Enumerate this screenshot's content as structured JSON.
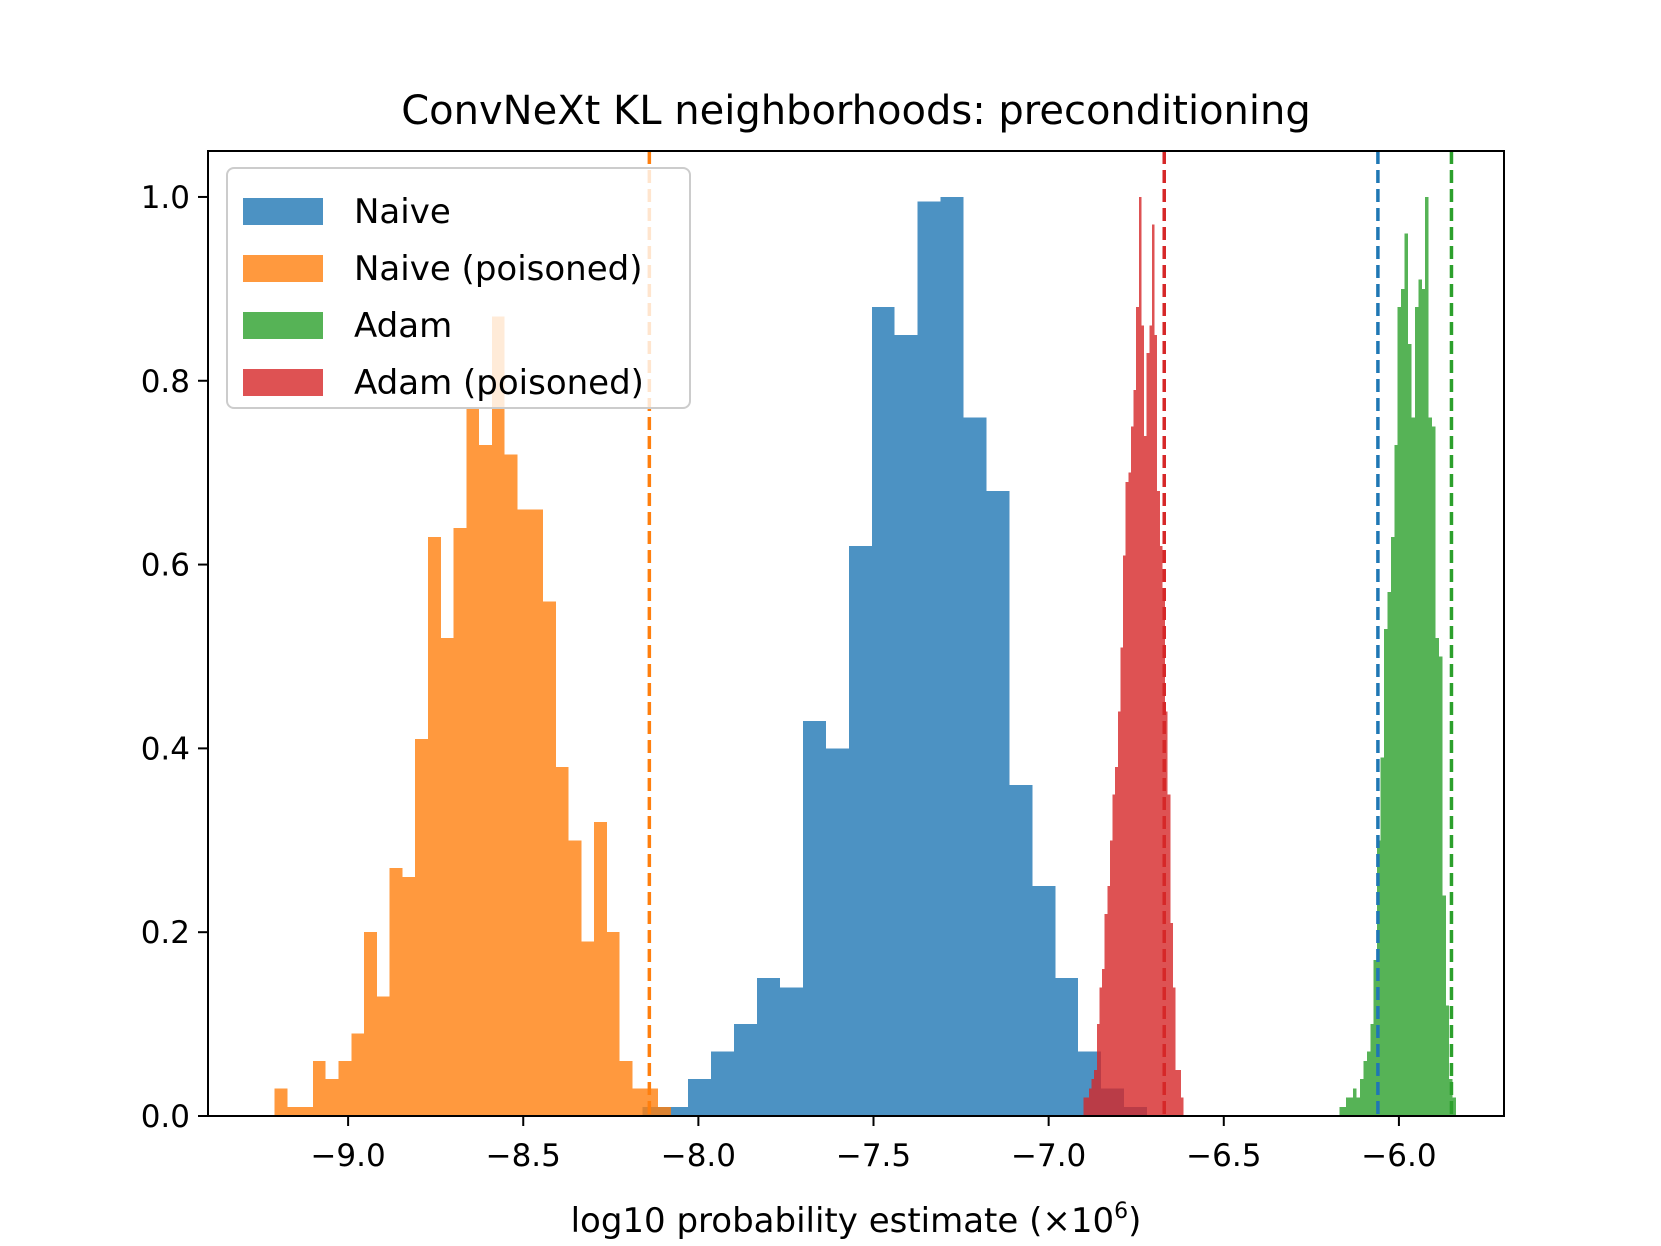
{
  "chart_data": {
    "type": "histogram",
    "title": "ConvNeXt KL neighborhoods: preconditioning",
    "xlabel_prefix": "log10 probability estimate (×10",
    "xlabel_exp": "6",
    "xlabel_suffix": ")",
    "ylabel": "",
    "xlim": [
      -9.4,
      -5.7
    ],
    "ylim": [
      0,
      1.05
    ],
    "xticks": [
      -9.0,
      -8.5,
      -8.0,
      -7.5,
      -7.0,
      -6.5,
      -6.0
    ],
    "xtick_labels": [
      "−9.0",
      "−8.5",
      "−8.0",
      "−7.5",
      "−7.0",
      "−6.5",
      "−6.0"
    ],
    "yticks": [
      0.0,
      0.2,
      0.4,
      0.6,
      0.8,
      1.0
    ],
    "ytick_labels": [
      "0.0",
      "0.2",
      "0.4",
      "0.6",
      "0.8",
      "1.0"
    ],
    "legend_position": "top-left",
    "series": [
      {
        "name": "Naive",
        "color": "#1f77b4",
        "x_start": -8.16,
        "bin_width": 0.0655,
        "values": [
          0.01,
          0.01,
          0.04,
          0.07,
          0.1,
          0.15,
          0.14,
          0.43,
          0.4,
          0.62,
          0.88,
          0.85,
          0.995,
          1.0,
          0.76,
          0.68,
          0.36,
          0.25,
          0.15,
          0.07,
          0.03,
          0.01
        ]
      },
      {
        "name": "Naive (poisoned)",
        "color": "#ff7f0e",
        "x_start": -9.21,
        "bin_width": 0.0365,
        "values": [
          0.03,
          0.01,
          0.01,
          0.06,
          0.04,
          0.06,
          0.09,
          0.2,
          0.13,
          0.27,
          0.26,
          0.41,
          0.63,
          0.52,
          0.64,
          0.77,
          0.73,
          0.87,
          0.72,
          0.66,
          0.66,
          0.56,
          0.38,
          0.3,
          0.19,
          0.32,
          0.2,
          0.06,
          0.03,
          0.03,
          0.01
        ]
      },
      {
        "name": "Adam",
        "color": "#2ca02c",
        "x_start": -6.17,
        "bin_width": 0.0098,
        "values": [
          0.01,
          0.01,
          0.02,
          0.02,
          0.03,
          0.02,
          0.04,
          0.06,
          0.07,
          0.1,
          0.17,
          0.3,
          0.39,
          0.53,
          0.57,
          0.63,
          0.73,
          0.88,
          0.9,
          0.96,
          0.84,
          0.76,
          0.88,
          0.91,
          0.9,
          1.0,
          0.76,
          0.75,
          0.52,
          0.5,
          0.24,
          0.12,
          0.04,
          0.02
        ]
      },
      {
        "name": "Adam (poisoned)",
        "color": "#d62728",
        "x_start": -6.9,
        "bin_width": 0.0075,
        "values": [
          0.02,
          0.02,
          0.03,
          0.04,
          0.05,
          0.1,
          0.14,
          0.16,
          0.22,
          0.25,
          0.3,
          0.35,
          0.38,
          0.44,
          0.51,
          0.61,
          0.69,
          0.7,
          0.75,
          0.79,
          0.88,
          1.0,
          0.86,
          0.74,
          0.83,
          0.86,
          0.97,
          0.85,
          0.68,
          0.62,
          0.57,
          0.44,
          0.35,
          0.21,
          0.14,
          0.05,
          0.05,
          0.02
        ]
      }
    ],
    "vlines": [
      {
        "x": -8.14,
        "color": "#ff7f0e",
        "style": "dashed"
      },
      {
        "x": -6.67,
        "color": "#d62728",
        "style": "dashed"
      },
      {
        "x": -6.06,
        "color": "#1f77b4",
        "style": "dashed"
      },
      {
        "x": -5.85,
        "color": "#2ca02c",
        "style": "dashed"
      }
    ]
  }
}
